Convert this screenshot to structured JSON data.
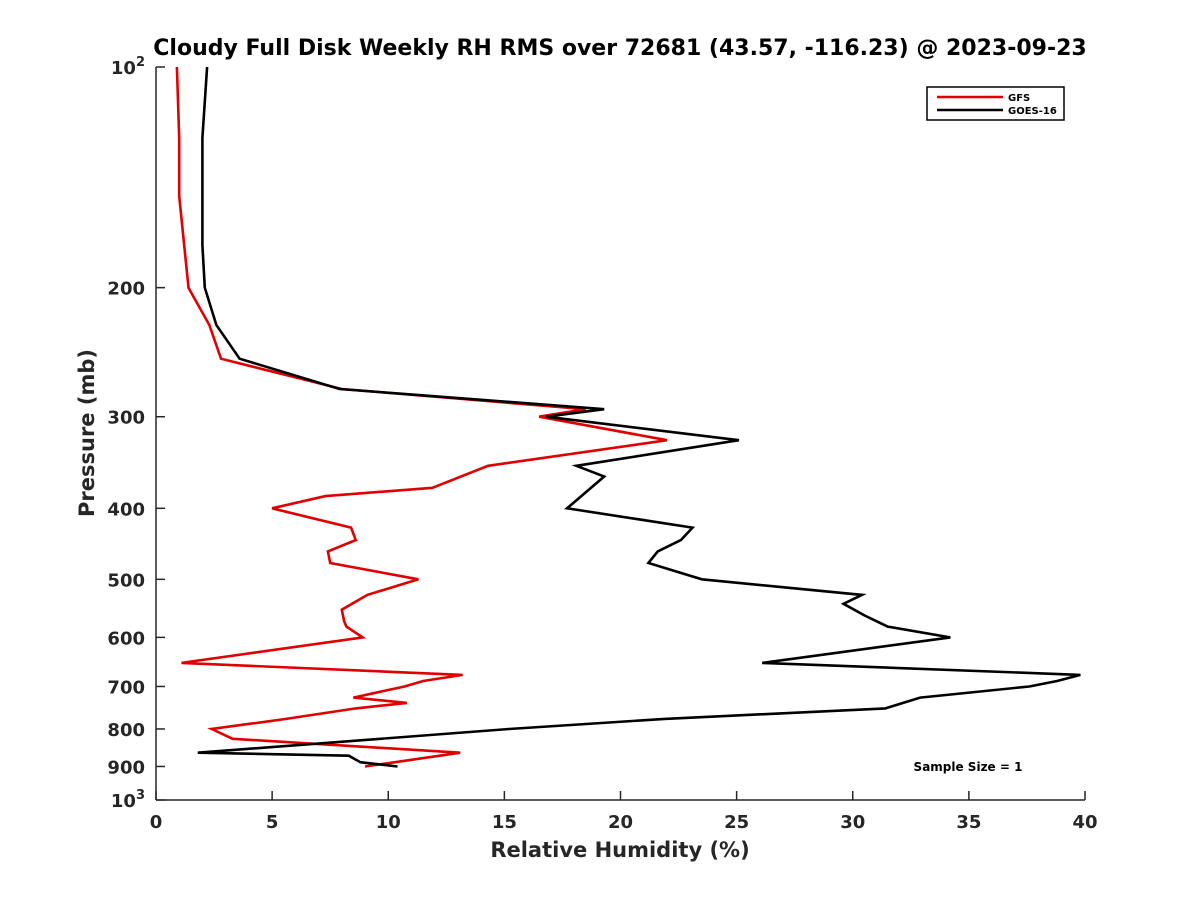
{
  "chart_data": {
    "type": "line",
    "title": "Cloudy Full Disk Weekly RH RMS over 72681 (43.57, -116.23) @ 2023-09-23",
    "xlabel": "Relative Humidity (%)",
    "ylabel": "Pressure (mb)",
    "xlim": [
      0,
      40
    ],
    "ylim": [
      100,
      1000
    ],
    "y_scale": "log",
    "y_reversed": true,
    "x_ticks": [
      0,
      5,
      10,
      15,
      20,
      25,
      30,
      35,
      40
    ],
    "y_ticks": [
      {
        "value": 100,
        "base": "10",
        "exp": "2"
      },
      {
        "value": 200,
        "label": "200"
      },
      {
        "value": 300,
        "label": "300"
      },
      {
        "value": 400,
        "label": "400"
      },
      {
        "value": 500,
        "label": "500"
      },
      {
        "value": 600,
        "label": "600"
      },
      {
        "value": 700,
        "label": "700"
      },
      {
        "value": 800,
        "label": "800"
      },
      {
        "value": 900,
        "label": "900"
      },
      {
        "value": 1000,
        "base": "10",
        "exp": "3"
      }
    ],
    "grid": false,
    "legend_position": "top-right",
    "annotation": "Sample Size = 1",
    "series": [
      {
        "name": "GFS",
        "color": "#e00000",
        "points": [
          [
            0.9,
            100
          ],
          [
            1.0,
            125
          ],
          [
            1.0,
            150
          ],
          [
            1.4,
            200
          ],
          [
            2.3,
            225
          ],
          [
            2.8,
            250
          ],
          [
            8.0,
            275
          ],
          [
            18.5,
            293
          ],
          [
            16.5,
            300
          ],
          [
            22.0,
            323
          ],
          [
            14.3,
            350
          ],
          [
            11.9,
            375
          ],
          [
            7.3,
            385
          ],
          [
            5.0,
            400
          ],
          [
            8.4,
            425
          ],
          [
            8.6,
            442
          ],
          [
            7.4,
            458
          ],
          [
            7.5,
            475
          ],
          [
            11.3,
            500
          ],
          [
            9.1,
            525
          ],
          [
            8.0,
            550
          ],
          [
            8.1,
            570
          ],
          [
            8.2,
            580
          ],
          [
            8.9,
            600
          ],
          [
            1.1,
            650
          ],
          [
            13.2,
            675
          ],
          [
            11.5,
            688
          ],
          [
            10.7,
            700
          ],
          [
            8.5,
            725
          ],
          [
            10.8,
            737
          ],
          [
            8.6,
            750
          ],
          [
            5.6,
            775
          ],
          [
            2.4,
            800
          ],
          [
            3.3,
            825
          ],
          [
            13.1,
            862
          ],
          [
            10.3,
            888
          ],
          [
            9.0,
            900
          ]
        ]
      },
      {
        "name": "GOES-16",
        "color": "#000000",
        "points": [
          [
            2.2,
            100
          ],
          [
            2.0,
            125
          ],
          [
            2.0,
            150
          ],
          [
            2.0,
            175
          ],
          [
            2.1,
            200
          ],
          [
            2.6,
            225
          ],
          [
            3.6,
            250
          ],
          [
            7.9,
            275
          ],
          [
            19.3,
            293
          ],
          [
            16.8,
            300
          ],
          [
            25.1,
            323
          ],
          [
            18.1,
            350
          ],
          [
            19.3,
            362
          ],
          [
            17.7,
            400
          ],
          [
            23.1,
            425
          ],
          [
            22.6,
            442
          ],
          [
            21.6,
            458
          ],
          [
            21.2,
            475
          ],
          [
            23.5,
            500
          ],
          [
            30.4,
            525
          ],
          [
            29.6,
            540
          ],
          [
            30.5,
            560
          ],
          [
            31.5,
            580
          ],
          [
            34.2,
            600
          ],
          [
            26.1,
            650
          ],
          [
            39.8,
            675
          ],
          [
            38.8,
            688
          ],
          [
            37.6,
            700
          ],
          [
            32.9,
            725
          ],
          [
            31.4,
            750
          ],
          [
            21.9,
            775
          ],
          [
            15.2,
            800
          ],
          [
            1.8,
            862
          ],
          [
            8.3,
            870
          ],
          [
            8.8,
            888
          ],
          [
            10.4,
            900
          ]
        ]
      }
    ]
  }
}
